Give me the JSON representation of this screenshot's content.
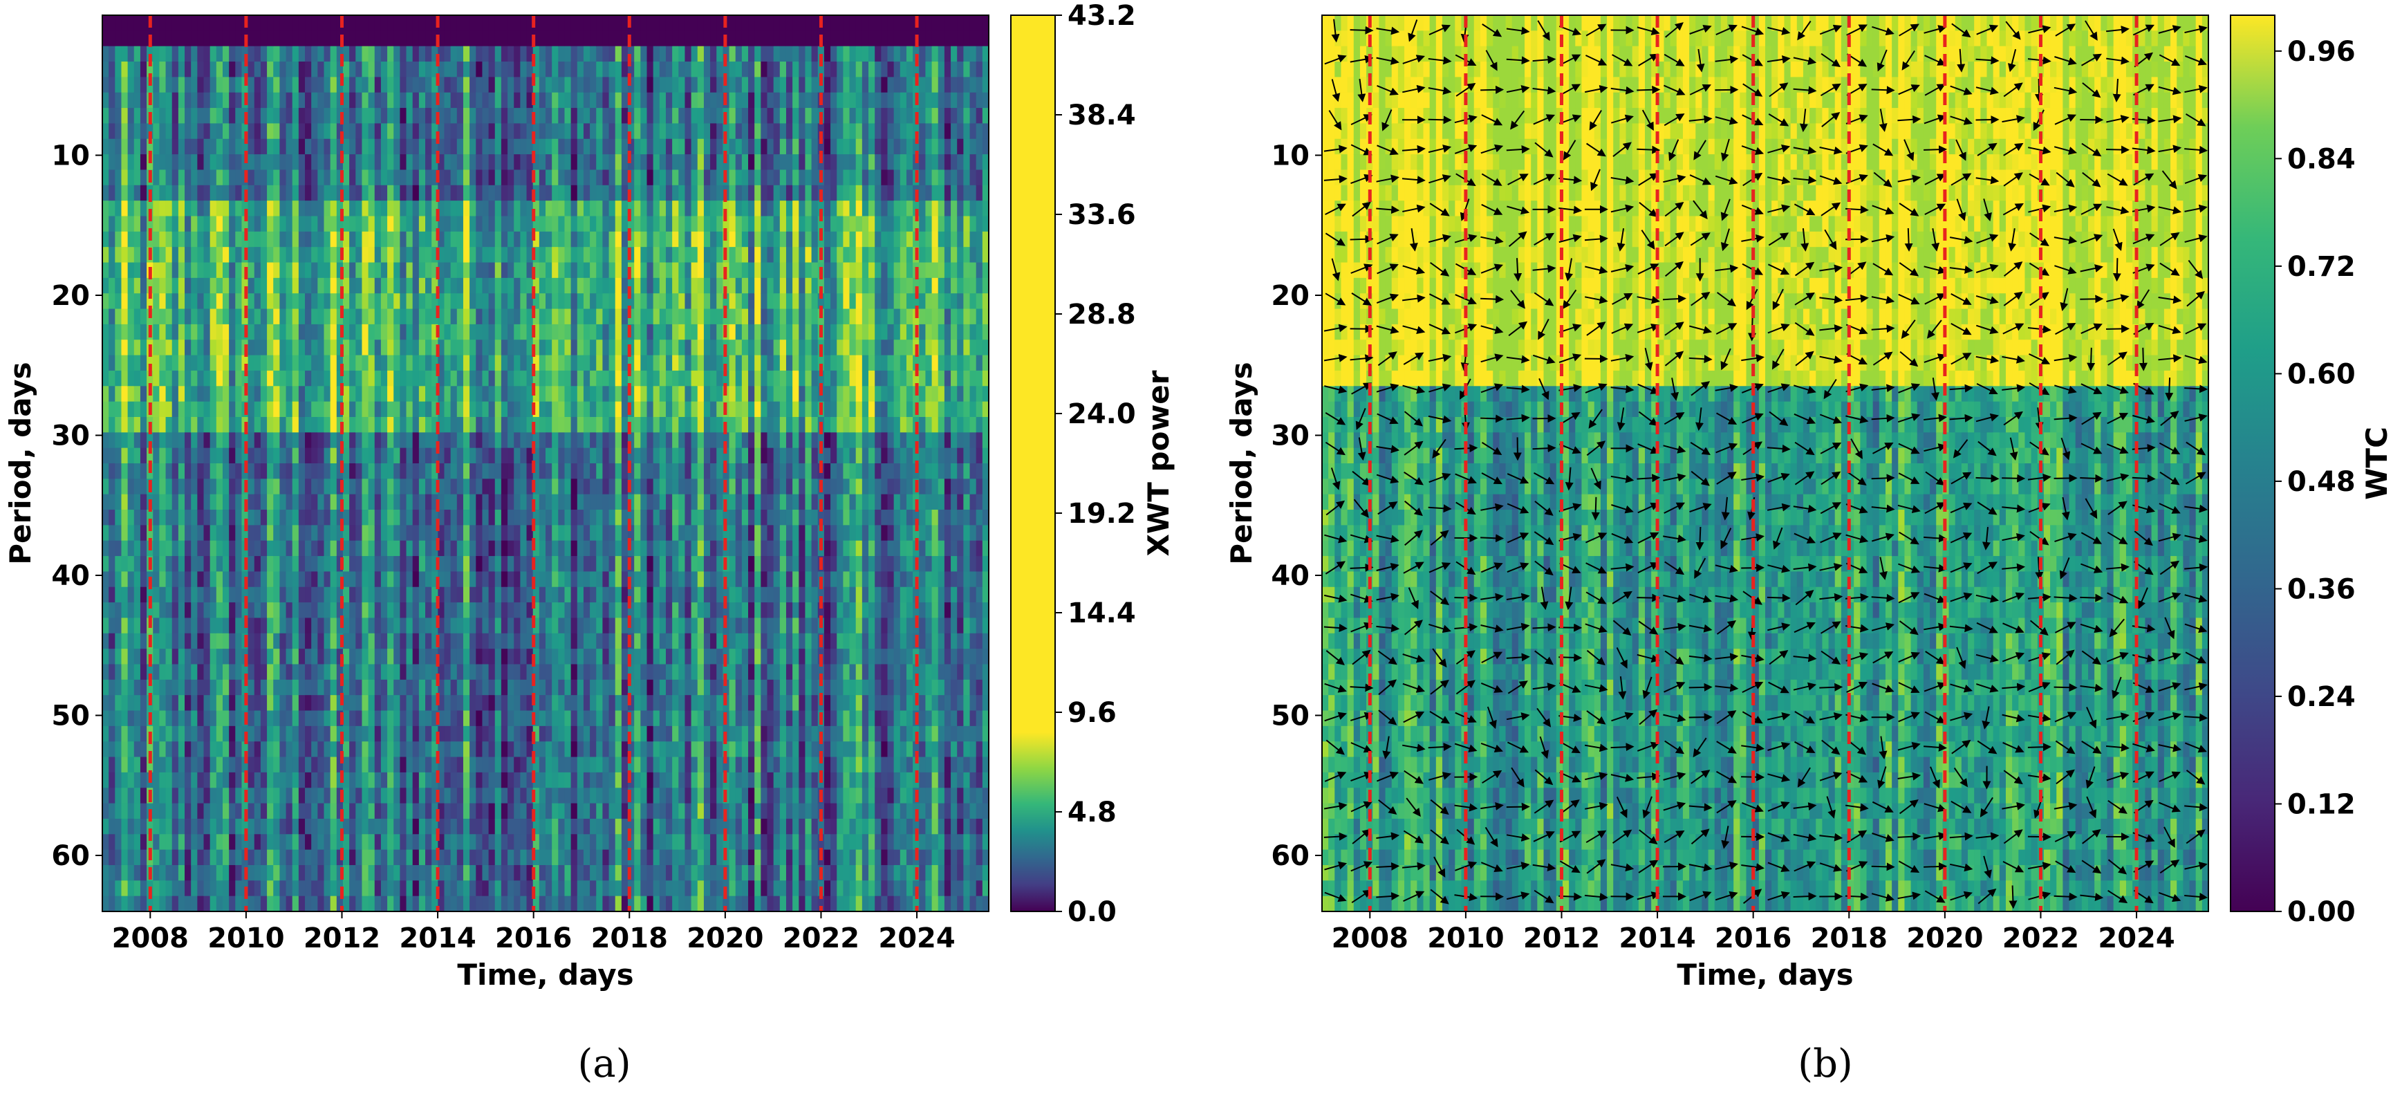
{
  "chart_data": [
    {
      "type": "heatmap",
      "panel": "a",
      "caption": "(a)",
      "title": "",
      "xlabel": "Time, days",
      "ylabel": "Period, days",
      "colorbar_label": "XWT power",
      "xlim": [
        2007.0,
        2025.5
      ],
      "ylim": [
        64,
        0
      ],
      "x_ticks": [
        2008,
        2010,
        2012,
        2014,
        2016,
        2018,
        2020,
        2022,
        2024
      ],
      "x_tick_labels": [
        "2008",
        "2010",
        "2012",
        "2014",
        "2016",
        "2018",
        "2020",
        "2022",
        "2024"
      ],
      "y_ticks": [
        10,
        20,
        30,
        40,
        50,
        60
      ],
      "y_tick_labels": [
        "10",
        "20",
        "30",
        "40",
        "50",
        "60"
      ],
      "colorbar_range": [
        0.0,
        43.2
      ],
      "colorbar_ticks": [
        0.0,
        4.8,
        9.6,
        14.4,
        19.2,
        24.0,
        28.8,
        33.6,
        38.4,
        43.2
      ],
      "colorbar_tick_labels": [
        "0.0",
        "4.8",
        "9.6",
        "14.4",
        "19.2",
        "24.0",
        "28.8",
        "33.6",
        "38.4",
        "43.2"
      ],
      "colormap": "viridis-nonlinear",
      "vertical_markers": [
        2008,
        2010,
        2012,
        2014,
        2016,
        2018,
        2020,
        2022,
        2024
      ],
      "marker_color": "#e8231f",
      "arrows": false
    },
    {
      "type": "heatmap",
      "panel": "b",
      "caption": "(b)",
      "title": "",
      "xlabel": "Time, days",
      "ylabel": "Period, days",
      "colorbar_label": "WTC",
      "xlim": [
        2007.0,
        2025.5
      ],
      "ylim": [
        64,
        0
      ],
      "x_ticks": [
        2008,
        2010,
        2012,
        2014,
        2016,
        2018,
        2020,
        2022,
        2024
      ],
      "x_tick_labels": [
        "2008",
        "2010",
        "2012",
        "2014",
        "2016",
        "2018",
        "2020",
        "2022",
        "2024"
      ],
      "y_ticks": [
        10,
        20,
        30,
        40,
        50,
        60
      ],
      "y_tick_labels": [
        "10",
        "20",
        "30",
        "40",
        "50",
        "60"
      ],
      "colorbar_range": [
        0.0,
        1.0
      ],
      "colorbar_ticks": [
        0.0,
        0.12,
        0.24,
        0.36,
        0.48,
        0.6,
        0.72,
        0.84,
        0.96
      ],
      "colorbar_tick_labels": [
        "0.00",
        "0.12",
        "0.24",
        "0.36",
        "0.48",
        "0.60",
        "0.72",
        "0.84",
        "0.96"
      ],
      "colormap": "viridis",
      "vertical_markers": [
        2008,
        2010,
        2012,
        2014,
        2016,
        2018,
        2020,
        2022,
        2024
      ],
      "marker_color": "#e8231f",
      "arrows": true
    }
  ]
}
